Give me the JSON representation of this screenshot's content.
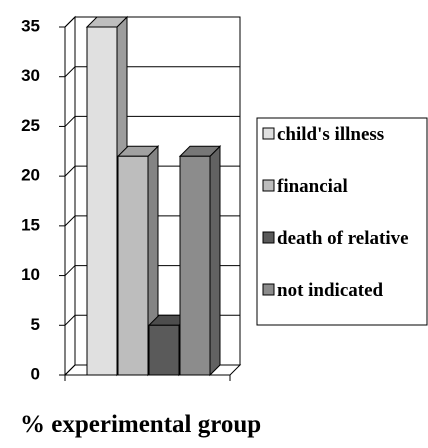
{
  "chart_data": {
    "type": "bar",
    "x_label": "% experimental group",
    "categories": [
      null
    ],
    "series": [
      {
        "name": "child's illness",
        "color": "#e0e0e0",
        "values": [
          35
        ]
      },
      {
        "name": "financial",
        "color": "#bdbdbd",
        "values": [
          22
        ]
      },
      {
        "name": "death of relative",
        "color": "#5a5a5a",
        "values": [
          5
        ]
      },
      {
        "name": "not indicated",
        "color": "#8c8c8c",
        "values": [
          22
        ]
      }
    ],
    "ylim": [
      0,
      35
    ],
    "yticks": [
      0,
      5,
      10,
      15,
      20,
      25,
      30,
      35
    ],
    "grid": true,
    "legend": "right"
  }
}
